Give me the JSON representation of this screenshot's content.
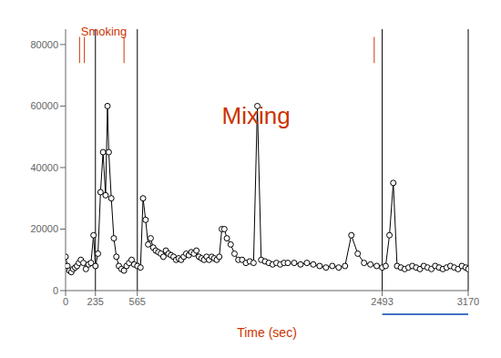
{
  "chart_data": {
    "type": "line",
    "xlabel": "Time (sec)",
    "xlabel_color": "#cc3300",
    "xlim": [
      0,
      3170
    ],
    "ylim": [
      0,
      85000
    ],
    "xticks": [
      0,
      235,
      565,
      2493,
      3170
    ],
    "yticks": [
      0,
      20000,
      40000,
      60000,
      80000
    ],
    "grid": false,
    "color": "#000000",
    "marker": "circle",
    "x": [
      0,
      15,
      30,
      45,
      60,
      75,
      90,
      105,
      120,
      140,
      160,
      180,
      200,
      220,
      235,
      255,
      275,
      295,
      315,
      330,
      340,
      360,
      380,
      400,
      420,
      440,
      460,
      480,
      500,
      520,
      540,
      565,
      590,
      610,
      630,
      650,
      670,
      690,
      710,
      730,
      750,
      770,
      790,
      810,
      830,
      850,
      870,
      890,
      910,
      930,
      950,
      970,
      990,
      1010,
      1030,
      1050,
      1070,
      1090,
      1110,
      1130,
      1150,
      1170,
      1190,
      1210,
      1230,
      1250,
      1270,
      1300,
      1330,
      1360,
      1390,
      1420,
      1450,
      1480,
      1510,
      1540,
      1570,
      1600,
      1630,
      1660,
      1690,
      1720,
      1750,
      1800,
      1850,
      1900,
      1950,
      2000,
      2050,
      2100,
      2150,
      2200,
      2250,
      2300,
      2350,
      2400,
      2450,
      2493,
      2520,
      2550,
      2580,
      2610,
      2640,
      2670,
      2700,
      2730,
      2760,
      2790,
      2820,
      2850,
      2880,
      2910,
      2940,
      2970,
      3000,
      3030,
      3060,
      3090,
      3120,
      3150,
      3170
    ],
    "values": [
      11000,
      8000,
      6500,
      6000,
      7000,
      7500,
      8000,
      9000,
      10000,
      9000,
      7000,
      8500,
      9000,
      18000,
      8000,
      12000,
      32000,
      45000,
      31000,
      60000,
      45000,
      30000,
      17000,
      11000,
      8000,
      7000,
      6500,
      8000,
      9000,
      10000,
      8500,
      8000,
      7500,
      30000,
      23000,
      15000,
      17000,
      14000,
      13000,
      12500,
      12000,
      11000,
      13000,
      12000,
      11500,
      11000,
      10000,
      10500,
      10000,
      11000,
      12000,
      11500,
      12500,
      12000,
      13000,
      11000,
      10500,
      10000,
      11000,
      10000,
      11000,
      10500,
      10000,
      11000,
      20000,
      20000,
      17000,
      15000,
      12000,
      10000,
      10000,
      9000,
      9500,
      9000,
      60000,
      10000,
      9500,
      9000,
      8500,
      9000,
      8500,
      9000,
      9000,
      9000,
      8500,
      9000,
      8500,
      8000,
      7500,
      8000,
      7500,
      8000,
      18000,
      12000,
      9000,
      8500,
      8000,
      7500,
      8000,
      18000,
      35000,
      8000,
      7500,
      7000,
      7500,
      8000,
      7500,
      7000,
      8000,
      7500,
      7000,
      8000,
      7500,
      7000,
      7500,
      8000,
      7500,
      7000,
      8000,
      7500,
      7000
    ],
    "reference_lines": {
      "x": [
        235,
        565,
        2493,
        3170
      ],
      "color": "#000000"
    },
    "smoking_bars": {
      "color": "#cc3300",
      "bars": [
        {
          "x": 110,
          "y_bottom": 74000,
          "y_top": 82500,
          "width": 7
        },
        {
          "x": 148,
          "y_bottom": 74000,
          "y_top": 82500,
          "width": 7
        },
        {
          "x": 460,
          "y_bottom": 74000,
          "y_top": 82500,
          "width": 7
        },
        {
          "x": 2430,
          "y_bottom": 74000,
          "y_top": 82500,
          "width": 7
        }
      ]
    },
    "annotations": [
      {
        "text": "Smoking",
        "x": 120,
        "y": 83000,
        "color": "#cc3300"
      },
      {
        "text": "Mixing",
        "x": 1500,
        "y": 57000,
        "color": "#cc3300"
      }
    ],
    "underline": {
      "x_start": 2493,
      "x_end": 3170,
      "color": "#4472c4"
    }
  }
}
